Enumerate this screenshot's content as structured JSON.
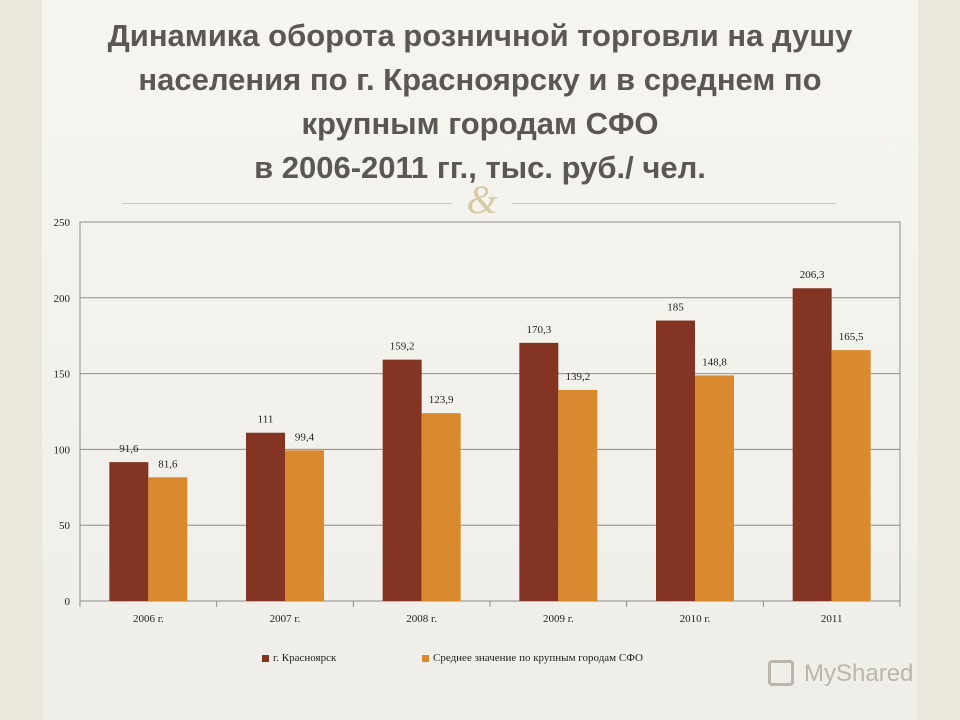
{
  "title_lines": [
    "Динамика оборота розничной торговли на душу",
    "населения по г. Красноярску и в среднем по",
    "крупным городам СФО",
    "в 2006-2011 гг., тыс. руб./ чел."
  ],
  "ornament_icon": "decorative-ampersand-icon",
  "watermark": {
    "text": "MyShared",
    "icon": "myshared-logo-icon"
  },
  "colors": {
    "series1": "#843423",
    "series2": "#d98a2e",
    "grid": "#8e8e8e",
    "title": "#5b5754"
  },
  "chart_data": {
    "type": "bar",
    "categories": [
      "2006 г.",
      "2007 г.",
      "2008 г.",
      "2009 г.",
      "2010 г.",
      "2011"
    ],
    "series": [
      {
        "name": "г. Красноярск",
        "values": [
          91.6,
          111,
          159.2,
          170.3,
          185,
          206.3
        ],
        "labels": [
          "91,6",
          "111",
          "159,2",
          "170,3",
          "185",
          "206,3"
        ]
      },
      {
        "name": "Среднее значение по крупным городам СФО",
        "values": [
          81.6,
          99.4,
          123.9,
          139.2,
          148.8,
          165.5
        ],
        "labels": [
          "81,6",
          "99,4",
          "123,9",
          "139,2",
          "148,8",
          "165,5"
        ]
      }
    ],
    "yticks": [
      "0",
      "50",
      "100",
      "150",
      "200",
      "250"
    ],
    "ylim": [
      0,
      250
    ],
    "grid": true,
    "legend_position": "bottom-center"
  }
}
